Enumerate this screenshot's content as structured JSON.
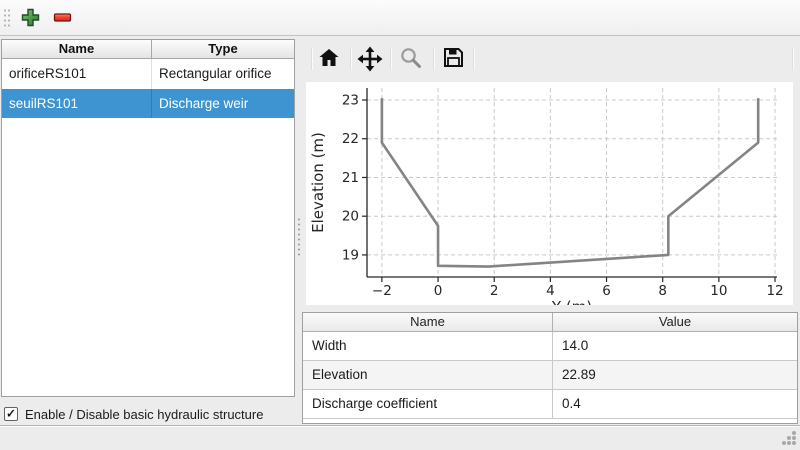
{
  "toolbar": {
    "add_tooltip": "add",
    "remove_tooltip": "remove"
  },
  "structures_table": {
    "columns": [
      "Name",
      "Type"
    ],
    "rows": [
      {
        "name": "orificeRS101",
        "type": "Rectangular orifice",
        "selected": false
      },
      {
        "name": "seuilRS101",
        "type": "Discharge weir",
        "selected": true
      }
    ]
  },
  "checkbox": {
    "label": "Enable / Disable basic hydraulic structure",
    "checked": true,
    "glyph": "✓"
  },
  "plot_toolbar": {
    "icons": [
      "home",
      "pan",
      "zoom",
      "save"
    ]
  },
  "chart_data": {
    "type": "line",
    "title": "",
    "xlabel": "Y (m)",
    "ylabel": "Elevation (m)",
    "x": [
      -2,
      -2,
      0,
      0,
      1.8,
      8.2,
      8.2,
      11.4,
      11.4
    ],
    "y": [
      23.05,
      21.9,
      19.75,
      18.72,
      18.7,
      19.0,
      20.0,
      21.9,
      23.05
    ],
    "xlim": [
      -2.53,
      12.07
    ],
    "ylim": [
      18.43,
      23.31
    ],
    "xticks": [
      -2,
      0,
      2,
      4,
      6,
      8,
      10,
      12
    ],
    "yticks": [
      19,
      20,
      21,
      22,
      23
    ],
    "grid": true,
    "legend": "none",
    "line_color": "#848484"
  },
  "properties_table": {
    "columns": [
      "Name",
      "Value"
    ],
    "rows": [
      {
        "name": "Width",
        "value": "14.0"
      },
      {
        "name": "Elevation",
        "value": "22.89"
      },
      {
        "name": "Discharge coefficient",
        "value": "0.4"
      }
    ]
  },
  "colors": {
    "selection": "#3d94d1",
    "selection_text": "#ffffff",
    "plus_green": "#4e9a4e",
    "minus_red": "#e8352a",
    "chart_line": "#848484",
    "grid_line": "#c9c9c9"
  }
}
